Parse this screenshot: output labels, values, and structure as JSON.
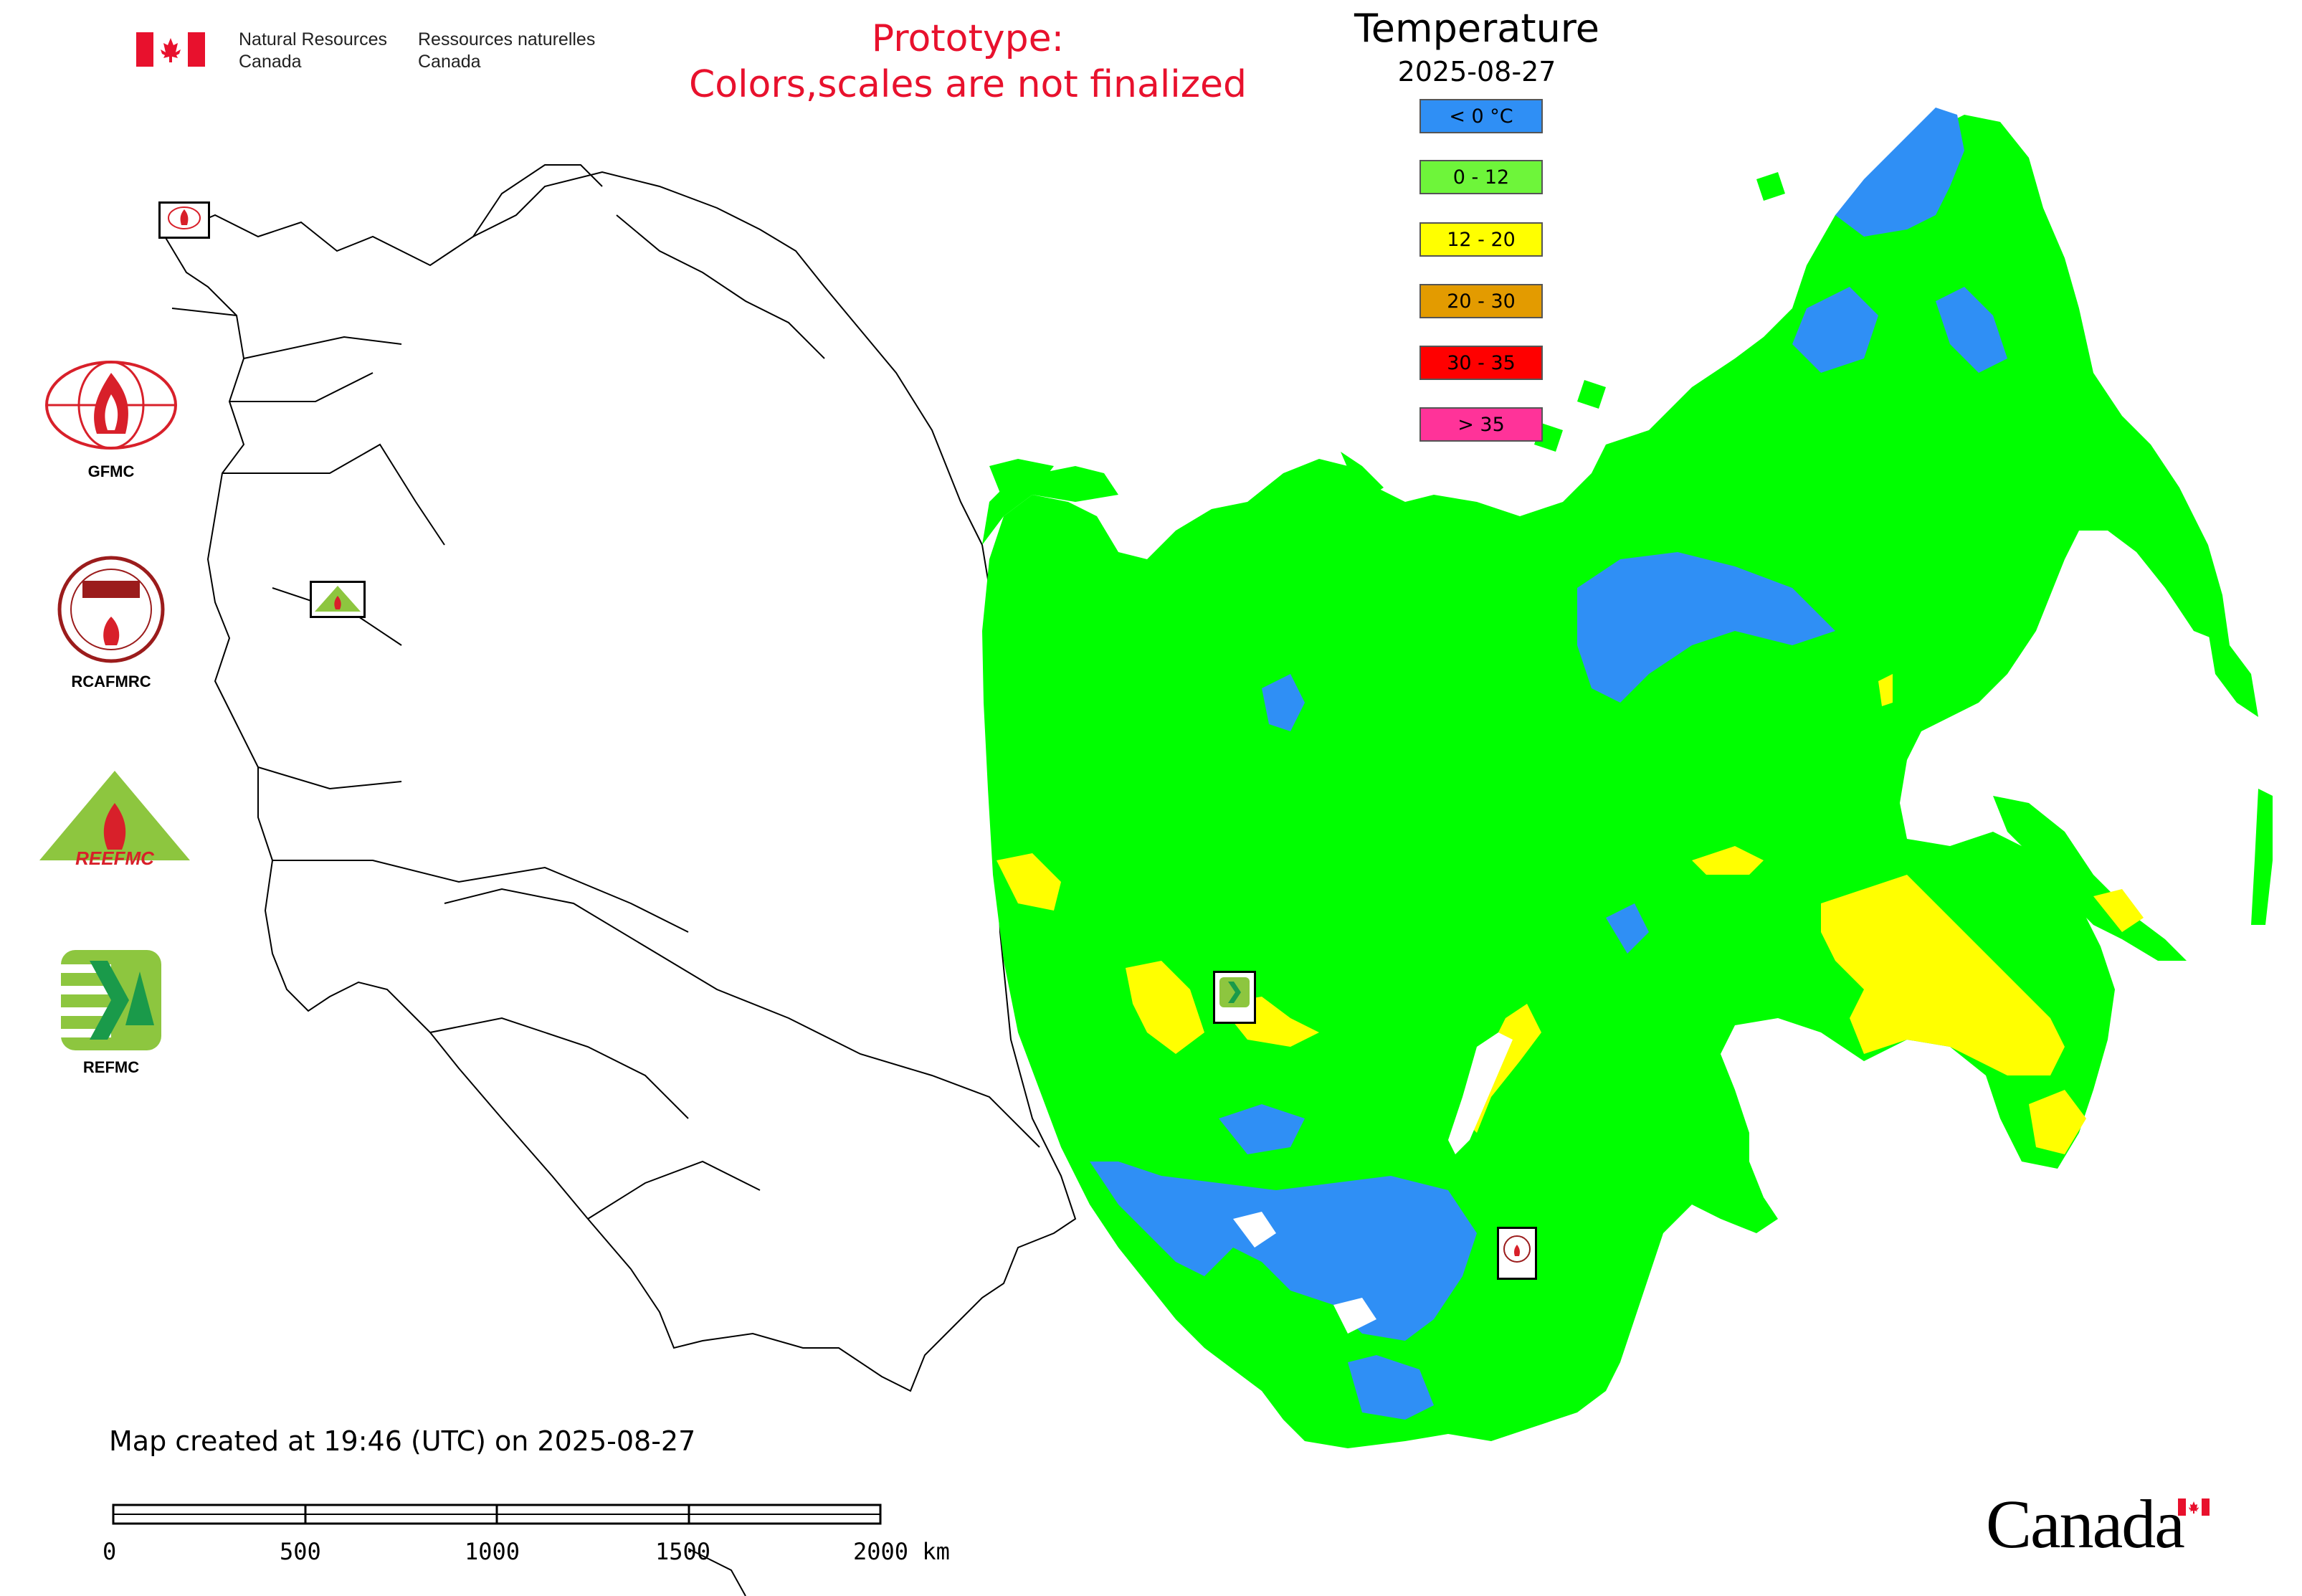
{
  "header": {
    "nrcan_en_line1": "Natural Resources",
    "nrcan_en_line2": "Canada",
    "nrcan_fr_line1": "Ressources naturelles",
    "nrcan_fr_line2": "Canada",
    "prototype_line1": "Prototype:",
    "prototype_line2": "Colors,scales are not finalized"
  },
  "legend": {
    "title": "Temperature",
    "date": "2025-08-27",
    "classes": [
      {
        "label": "< 0 °C",
        "color": "#2f8ff5"
      },
      {
        "label": "0 - 12",
        "color": "#6ef53a"
      },
      {
        "label": "12 - 20",
        "color": "#ffff00"
      },
      {
        "label": "20 - 30",
        "color": "#e39b00"
      },
      {
        "label": "30 - 35",
        "color": "#ff0000"
      },
      {
        "label": "> 35",
        "color": "#ff3399"
      }
    ]
  },
  "logos": {
    "gfmc": "GFMC",
    "rcafmrc": "RCAFMRC",
    "reefmc_wordmark": "REEFMC",
    "refmc": "REFMC"
  },
  "footer": {
    "created_text": "Map created at 19:46 (UTC) on 2025-08-27",
    "scale_labels": [
      "0",
      "500",
      "1000",
      "1500",
      "2000 km"
    ],
    "canada_wordmark": "Canada"
  },
  "colors": {
    "map_green": "#00ff00",
    "map_blue": "#2f8ff5",
    "map_yellow": "#ffff00",
    "outline": "#000000",
    "prototype_red": "#e8112d"
  }
}
